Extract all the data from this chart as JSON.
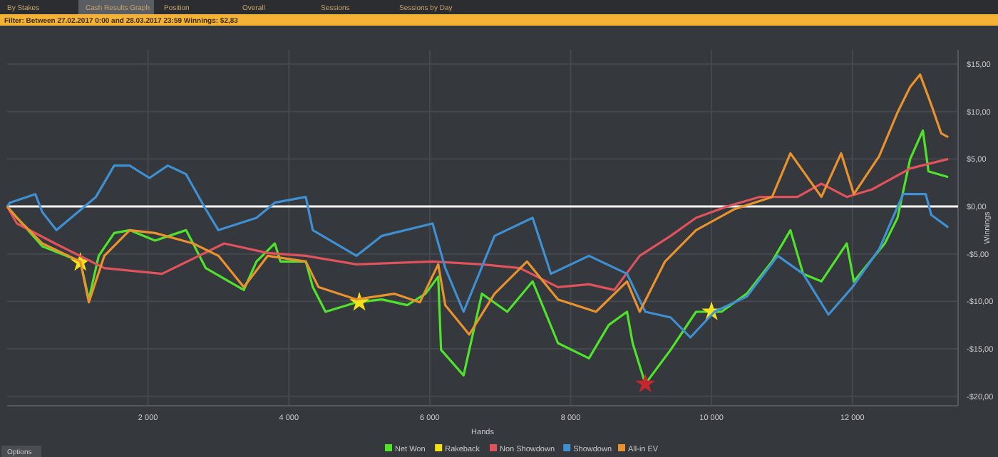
{
  "chart_data": {
    "type": "line",
    "subtitle": "Filter: Between 27.02.2017 0:00 and 28.03.2017 23:59 Winnings: $2,83",
    "xlabel": "Hands",
    "ylabel": "Winnings",
    "annotations": [
      "By Stakes",
      "Cash Results Graph",
      "Position",
      "Overall",
      "Sessions",
      "Sessions by Day",
      "Options"
    ],
    "xlim": [
      0,
      13500
    ],
    "xticks": [
      {
        "value": 2000,
        "label": "2 000"
      },
      {
        "value": 4000,
        "label": "4 000"
      },
      {
        "value": 6000,
        "label": "6 000"
      },
      {
        "value": 8000,
        "label": "8 000"
      },
      {
        "value": 10000,
        "label": "10 000"
      },
      {
        "value": 12000,
        "label": "12 000"
      }
    ],
    "ylim": [
      -21,
      16.5
    ],
    "yticks": [
      {
        "value": -20,
        "label": "-$20,00"
      },
      {
        "value": -15,
        "label": "-$15,00"
      },
      {
        "value": -10,
        "label": "-$10,00"
      },
      {
        "value": -5,
        "label": "-$5,00"
      },
      {
        "value": 0,
        "label": "$0,00"
      },
      {
        "value": 5,
        "label": "$5,00"
      },
      {
        "value": 10,
        "label": "$10,00"
      },
      {
        "value": 15,
        "label": "$15,00"
      }
    ],
    "grid": true,
    "legend": "bottom",
    "line_style": "solid",
    "ref_lines": [
      {
        "axis": "y",
        "value": 0,
        "color": "#ffffff"
      }
    ],
    "series": [
      {
        "name": "Net Won",
        "color": "#4fe32c",
        "x": [
          0,
          140,
          500,
          1040,
          1160,
          1300,
          1520,
          1740,
          2100,
          2540,
          2640,
          2820,
          3360,
          3540,
          3800,
          3880,
          4240,
          4340,
          4520,
          4960,
          5320,
          5680,
          5940,
          6120,
          6160,
          6480,
          6740,
          7100,
          7460,
          7820,
          8260,
          8540,
          8800,
          8880,
          9060,
          9420,
          9780,
          10140,
          10500,
          10860,
          11120,
          11300,
          11560,
          11920,
          12020,
          12460,
          12640,
          12820,
          13000,
          13080,
          13360
        ],
        "values": [
          0,
          -1.2,
          -4.2,
          -5.8,
          -9.8,
          -5.2,
          -2.8,
          -2.5,
          -3.6,
          -2.5,
          -3.9,
          -6.5,
          -8.8,
          -5.8,
          -3.9,
          -5.8,
          -5.8,
          -8.5,
          -11.1,
          -10.1,
          -9.8,
          -10.4,
          -9.2,
          -7.4,
          -15.1,
          -17.8,
          -9.2,
          -11.1,
          -7.9,
          -14.4,
          -16,
          -12.5,
          -11.1,
          -14.4,
          -18.7,
          -15.1,
          -11.1,
          -11.1,
          -9.2,
          -5.8,
          -2.5,
          -7.1,
          -7.9,
          -3.9,
          -7.9,
          -3.9,
          -1.2,
          5,
          8,
          3.7,
          3.1
        ]
      },
      {
        "name": "Rakeback",
        "type": "scatter",
        "marker": "star",
        "color": "#f2e21c",
        "x": [
          1040,
          5000,
          10000
        ],
        "values": [
          -5.9,
          -10.1,
          -11.1
        ]
      },
      {
        "name": "Non Showdown",
        "color": "#e0525c",
        "x": [
          0,
          140,
          680,
          1380,
          2200,
          2640,
          3080,
          3700,
          4240,
          4960,
          6040,
          6740,
          7280,
          7820,
          8260,
          8620,
          8980,
          9420,
          9780,
          10220,
          10680,
          11220,
          11560,
          11920,
          12280,
          12820,
          13360
        ],
        "values": [
          0,
          -1.8,
          -3.9,
          -6.5,
          -7.1,
          -5.5,
          -3.9,
          -4.9,
          -5.2,
          -6.1,
          -5.8,
          -6.1,
          -6.5,
          -8.5,
          -8.2,
          -8.8,
          -5.2,
          -3.1,
          -1.2,
          0,
          1,
          1,
          2.4,
          1,
          1.8,
          4,
          5
        ]
      },
      {
        "name": "Showdown",
        "color": "#3f90d2",
        "x": [
          0,
          40,
          400,
          500,
          700,
          1260,
          1520,
          1740,
          2020,
          2280,
          2540,
          2820,
          3000,
          3540,
          3800,
          4240,
          4340,
          4960,
          5320,
          6040,
          6220,
          6480,
          6920,
          7460,
          7720,
          8260,
          8800,
          9060,
          9420,
          9700,
          10040,
          10500,
          10940,
          11300,
          11660,
          12000,
          12380,
          12720,
          13040,
          13120,
          13360
        ],
        "values": [
          0,
          0.4,
          1.3,
          -0.6,
          -2.5,
          1,
          4.3,
          4.3,
          3,
          4.3,
          3.4,
          -0.3,
          -2.5,
          -1.2,
          0.4,
          1,
          -2.5,
          -5.2,
          -3.1,
          -1.8,
          -6.5,
          -11.1,
          -3.1,
          -1.2,
          -7.1,
          -5.2,
          -7.1,
          -11.1,
          -11.7,
          -13.8,
          -11.1,
          -9.5,
          -5.2,
          -7.1,
          -11.4,
          -8.5,
          -4.5,
          1.3,
          1.3,
          -0.9,
          -2.2
        ]
      },
      {
        "name": "All-in EV",
        "color": "#ea922e",
        "x": [
          0,
          140,
          500,
          1040,
          1160,
          1380,
          1740,
          2100,
          2640,
          3000,
          3360,
          3700,
          4240,
          4420,
          4960,
          5500,
          5860,
          6120,
          6220,
          6560,
          6920,
          7380,
          7820,
          8360,
          8800,
          8980,
          9340,
          9780,
          10320,
          10860,
          11120,
          11560,
          11840,
          12020,
          12380,
          12640,
          12820,
          12960,
          13120,
          13260,
          13360
        ],
        "values": [
          0,
          -1.2,
          -3.9,
          -5.8,
          -10.1,
          -5.2,
          -2.5,
          -2.8,
          -3.9,
          -5.2,
          -8.5,
          -5.2,
          -5.8,
          -8.5,
          -9.8,
          -9.2,
          -10.1,
          -6.1,
          -10.4,
          -13.5,
          -9.2,
          -5.8,
          -9.8,
          -11.1,
          -7.9,
          -11.1,
          -5.8,
          -2.5,
          -0.3,
          1,
          5.6,
          1,
          5.6,
          1.3,
          5.3,
          9.9,
          12.6,
          13.9,
          10.7,
          7.7,
          7.3
        ]
      },
      {
        "type": "scatter",
        "marker": "star",
        "color": "#c8262e",
        "x": [
          9060
        ],
        "values": [
          -18.7
        ]
      }
    ]
  }
}
